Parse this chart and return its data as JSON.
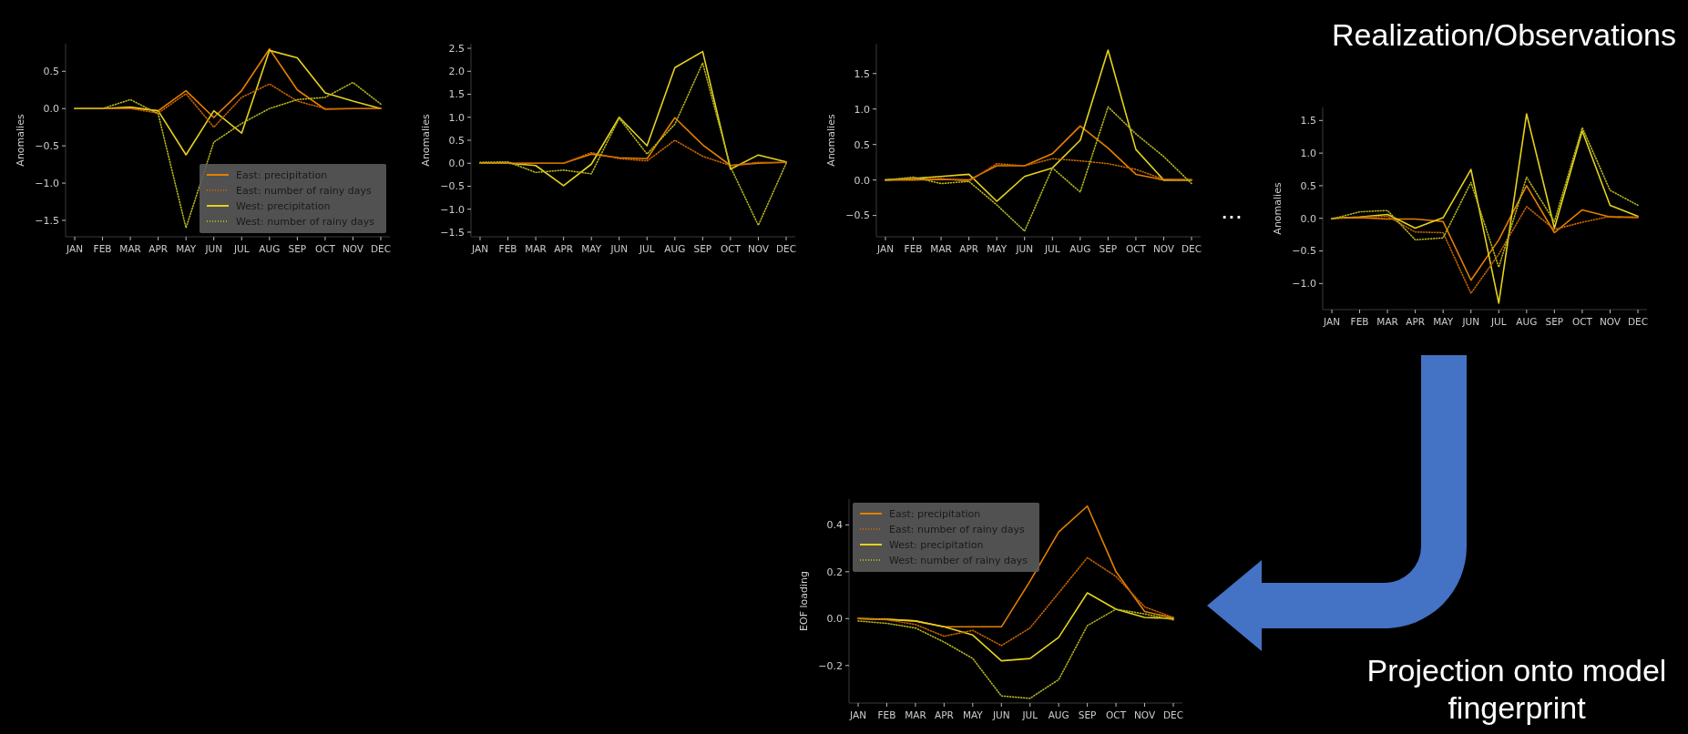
{
  "chart_data": [
    {
      "type": "line",
      "categories": [
        "JAN",
        "FEB",
        "MAR",
        "APR",
        "MAY",
        "JUN",
        "JUL",
        "AUG",
        "SEP",
        "OCT",
        "NOV",
        "DEC"
      ],
      "ylabel": "Anomalies",
      "ylim": [
        -1.72,
        0.87
      ],
      "yticks": [
        {
          "value": -1.5,
          "label": "−1.5"
        },
        {
          "value": -1,
          "label": "−1.0"
        },
        {
          "value": -0.5,
          "label": "−0.5"
        },
        {
          "value": 0,
          "label": "0.0"
        },
        {
          "value": 0.5,
          "label": "0.5"
        }
      ],
      "legend": "lower right",
      "series": [
        {
          "name": "East: precipitation",
          "color": "#e57f00",
          "line_style": "solid",
          "values": [
            0,
            0,
            0.01,
            -0.03,
            0.24,
            -0.12,
            0.24,
            0.8,
            0.25,
            -0.01,
            0,
            0
          ]
        },
        {
          "name": "East: number of rainy days",
          "color": "#c86400",
          "line_style": "dotted",
          "values": [
            0,
            0,
            0,
            -0.06,
            0.2,
            -0.25,
            0.15,
            0.33,
            0.1,
            0,
            0,
            0
          ]
        },
        {
          "name": "West: precipitation",
          "color": "#e6d21c",
          "line_style": "solid",
          "values": [
            0,
            0,
            0.02,
            -0.03,
            -0.62,
            -0.03,
            -0.33,
            0.78,
            0.68,
            0.21,
            0.1,
            0
          ]
        },
        {
          "name": "West: number of rainy days",
          "color": "#b4b41e",
          "line_style": "dotted",
          "values": [
            0,
            0,
            0.12,
            -0.07,
            -1.6,
            -0.45,
            -0.2,
            0,
            0.12,
            0.15,
            0.35,
            0.06
          ]
        }
      ]
    },
    {
      "type": "line",
      "categories": [
        "JAN",
        "FEB",
        "MAR",
        "APR",
        "MAY",
        "JUN",
        "JUL",
        "AUG",
        "SEP",
        "OCT",
        "NOV",
        "DEC"
      ],
      "ylabel": "Anomalies",
      "ylim": [
        -1.6,
        2.6
      ],
      "yticks": [
        {
          "value": -1.5,
          "label": "−1.5"
        },
        {
          "value": -1,
          "label": "−1.0"
        },
        {
          "value": -0.5,
          "label": "−0.5"
        },
        {
          "value": 0,
          "label": "0.0"
        },
        {
          "value": 0.5,
          "label": "0.5"
        },
        {
          "value": 1,
          "label": "1.0"
        },
        {
          "value": 1.5,
          "label": "1.5"
        },
        {
          "value": 2,
          "label": "2.0"
        },
        {
          "value": 2.5,
          "label": "2.5"
        }
      ],
      "series": [
        {
          "color": "#e57f00",
          "line_style": "solid",
          "values": [
            0,
            0,
            0,
            0,
            0.2,
            0.12,
            0.1,
            0.99,
            0.4,
            -0.05,
            0,
            0.02
          ]
        },
        {
          "color": "#c86400",
          "line_style": "dotted",
          "values": [
            0,
            0,
            0,
            0,
            0.23,
            0.1,
            0.05,
            0.5,
            0.15,
            -0.05,
            0.02,
            0.02
          ]
        },
        {
          "color": "#e6d21c",
          "line_style": "solid",
          "values": [
            0,
            0,
            -0.05,
            -0.49,
            -0.02,
            1,
            0.38,
            2.08,
            2.43,
            -0.13,
            0.18,
            0.03
          ]
        },
        {
          "color": "#b4b41e",
          "line_style": "dotted",
          "values": [
            0.02,
            0.03,
            -0.2,
            -0.15,
            -0.23,
            0.98,
            0.2,
            0.85,
            2.18,
            -0.08,
            -1.35,
            0
          ]
        }
      ]
    },
    {
      "type": "line",
      "categories": [
        "JAN",
        "FEB",
        "MAR",
        "APR",
        "MAY",
        "JUN",
        "JUL",
        "AUG",
        "SEP",
        "OCT",
        "NOV",
        "DEC"
      ],
      "ylabel": "Anomalies",
      "ylim": [
        -0.8,
        1.92
      ],
      "yticks": [
        {
          "value": -0.5,
          "label": "−0.5"
        },
        {
          "value": 0,
          "label": "0.0"
        },
        {
          "value": 0.5,
          "label": "0.5"
        },
        {
          "value": 1,
          "label": "1.0"
        },
        {
          "value": 1.5,
          "label": "1.5"
        }
      ],
      "series": [
        {
          "color": "#e57f00",
          "line_style": "solid",
          "values": [
            0,
            0,
            0.01,
            0,
            0.2,
            0.2,
            0.37,
            0.76,
            0.45,
            0.08,
            0,
            0
          ]
        },
        {
          "color": "#c86400",
          "line_style": "dotted",
          "values": [
            0,
            0.01,
            0.02,
            -0.02,
            0.23,
            0.2,
            0.3,
            0.27,
            0.23,
            0.15,
            0.01,
            0
          ]
        },
        {
          "color": "#e6d21c",
          "line_style": "solid",
          "values": [
            0,
            0.02,
            0.05,
            0.08,
            -0.3,
            0.05,
            0.17,
            0.56,
            1.83,
            0.43,
            0,
            0
          ]
        },
        {
          "color": "#b4b41e",
          "line_style": "dotted",
          "values": [
            0,
            0.04,
            -0.05,
            -0.02,
            -0.35,
            -0.72,
            0.17,
            -0.17,
            1.03,
            0.65,
            0.33,
            -0.05
          ]
        }
      ]
    },
    {
      "type": "line",
      "categories": [
        "JAN",
        "FEB",
        "MAR",
        "APR",
        "MAY",
        "JUN",
        "JUL",
        "AUG",
        "SEP",
        "OCT",
        "NOV",
        "DEC"
      ],
      "ylabel": "Anomalies",
      "ylim": [
        -1.4,
        1.7
      ],
      "yticks": [
        {
          "value": -1,
          "label": "−1.0"
        },
        {
          "value": -0.5,
          "label": "−0.5"
        },
        {
          "value": 0,
          "label": "0.0"
        },
        {
          "value": 0.5,
          "label": "0.5"
        },
        {
          "value": 1,
          "label": "1.0"
        },
        {
          "value": 1.5,
          "label": "1.5"
        }
      ],
      "series": [
        {
          "color": "#e57f00",
          "line_style": "solid",
          "values": [
            0,
            0.01,
            -0.01,
            -0.01,
            -0.05,
            -0.95,
            -0.33,
            0.5,
            -0.22,
            0.13,
            0.02,
            0.01
          ]
        },
        {
          "color": "#c86400",
          "line_style": "dotted",
          "values": [
            0,
            0.02,
            0.03,
            -0.21,
            -0.22,
            -1.15,
            -0.55,
            0.18,
            -0.17,
            -0.06,
            0.03,
            0.02
          ]
        },
        {
          "color": "#e6d21c",
          "line_style": "solid",
          "values": [
            0,
            0.02,
            0.06,
            -0.15,
            0.01,
            0.75,
            -1.3,
            1.6,
            -0.15,
            1.34,
            0.2,
            0.03
          ]
        },
        {
          "color": "#b4b41e",
          "line_style": "dotted",
          "values": [
            -0.01,
            0.1,
            0.12,
            -0.33,
            -0.3,
            0.55,
            -0.75,
            0.63,
            -0.05,
            1.39,
            0.43,
            0.2
          ]
        }
      ]
    },
    {
      "type": "line",
      "categories": [
        "JAN",
        "FEB",
        "MAR",
        "APR",
        "MAY",
        "JUN",
        "JUL",
        "AUG",
        "SEP",
        "OCT",
        "NOV",
        "DEC"
      ],
      "ylabel": "EOF loading",
      "ylim": [
        -0.36,
        0.51
      ],
      "yticks": [
        {
          "value": -0.2,
          "label": "−0.2"
        },
        {
          "value": 0,
          "label": "0.0"
        },
        {
          "value": 0.2,
          "label": "0.2"
        },
        {
          "value": 0.4,
          "label": "0.4"
        }
      ],
      "legend": "upper left",
      "series": [
        {
          "name": "East: precipitation",
          "color": "#e57f00",
          "line_style": "solid",
          "values": [
            0,
            -0.003,
            -0.01,
            -0.035,
            -0.035,
            -0.035,
            0.16,
            0.37,
            0.48,
            0.2,
            0.03,
            0.003
          ]
        },
        {
          "name": "East: number of rainy days",
          "color": "#c86400",
          "line_style": "dotted",
          "values": [
            0,
            -0.005,
            -0.025,
            -0.075,
            -0.05,
            -0.115,
            -0.04,
            0.11,
            0.26,
            0.18,
            0.05,
            0.005
          ]
        },
        {
          "name": "West: precipitation",
          "color": "#e6d21c",
          "line_style": "solid",
          "values": [
            0,
            -0.003,
            -0.01,
            -0.035,
            -0.07,
            -0.18,
            -0.17,
            -0.08,
            0.11,
            0.04,
            0.005,
            0
          ]
        },
        {
          "name": "West: number of rainy days",
          "color": "#b4b41e",
          "line_style": "dotted",
          "values": [
            -0.01,
            -0.02,
            -0.04,
            -0.1,
            -0.17,
            -0.33,
            -0.34,
            -0.26,
            -0.03,
            0.04,
            0.02,
            -0.005
          ]
        }
      ]
    },
    {
      "type": "other",
      "annotations": [
        "Realization/Observations",
        "...",
        "Projection onto model fingerprint"
      ]
    }
  ]
}
